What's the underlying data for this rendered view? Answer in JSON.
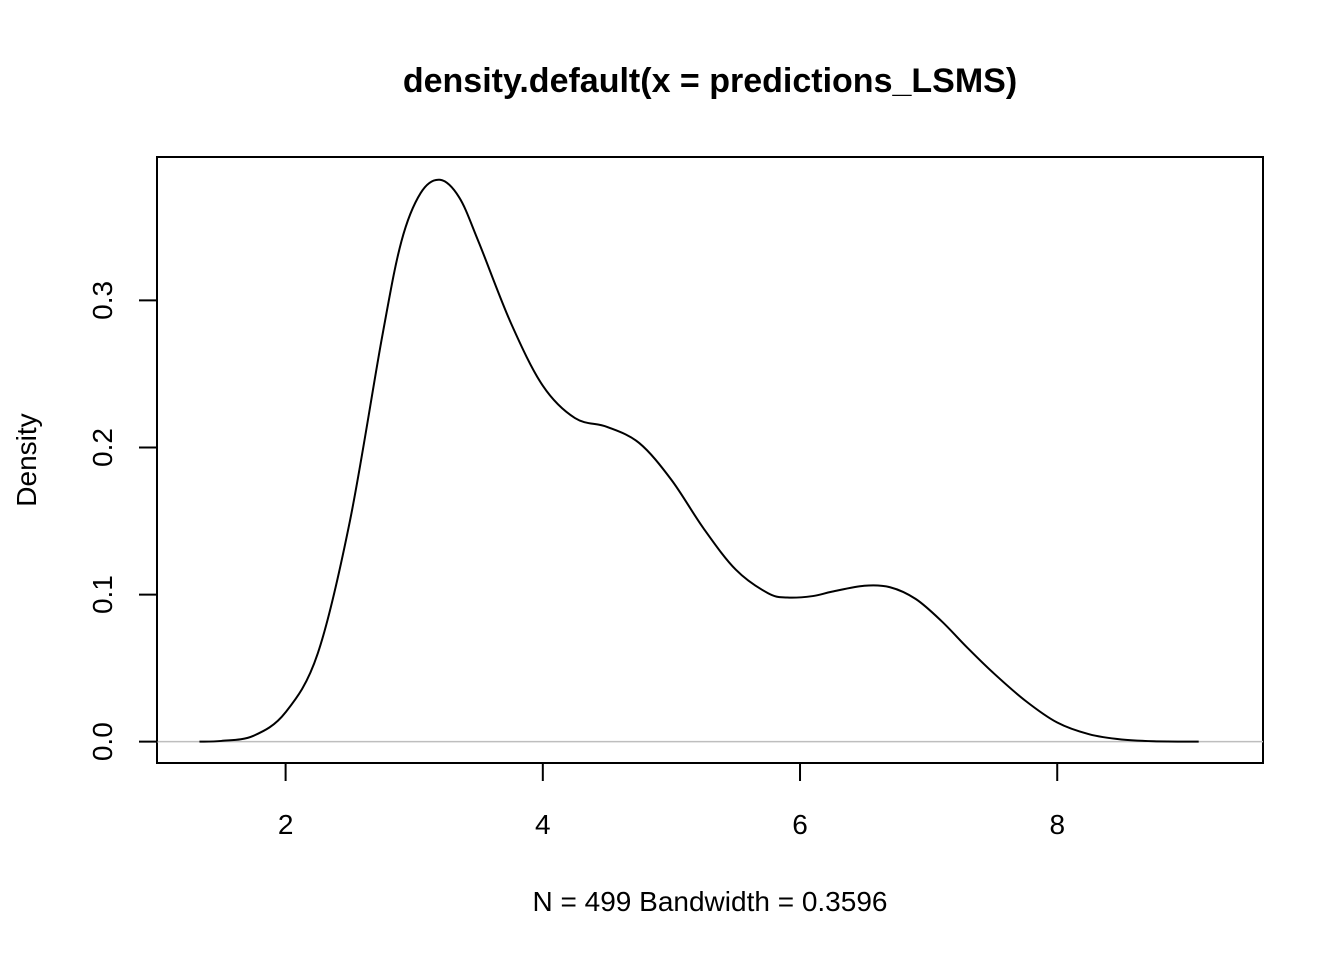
{
  "chart_data": {
    "type": "line",
    "title": "density.default(x = predictions_LSMS)",
    "xlabel": "N = 499   Bandwidth = 0.3596",
    "ylabel": "Density",
    "xlim": [
      1.0,
      9.6
    ],
    "ylim": [
      -0.0145,
      0.3975
    ],
    "x_ticks": [
      2,
      4,
      6,
      8
    ],
    "x_tick_labels": [
      "2",
      "4",
      "6",
      "8"
    ],
    "y_ticks": [
      0.0,
      0.1,
      0.2,
      0.3
    ],
    "y_tick_labels": [
      "0.0",
      "0.1",
      "0.2",
      "0.3"
    ],
    "baseline": 0,
    "grid": false,
    "colors": {
      "line": "#000000",
      "baseline": "#bebebe",
      "frame": "#000000"
    },
    "series": [
      {
        "x": [
          1.33,
          1.5,
          1.75,
          2.0,
          2.25,
          2.5,
          2.75,
          2.9,
          3.05,
          3.2,
          3.35,
          3.5,
          3.75,
          4.0,
          4.25,
          4.5,
          4.75,
          5.0,
          5.25,
          5.5,
          5.75,
          5.9,
          6.1,
          6.25,
          6.5,
          6.7,
          6.9,
          7.1,
          7.3,
          7.5,
          7.75,
          8.0,
          8.25,
          8.5,
          8.75,
          9.1
        ],
        "y": [
          0.0,
          0.0005,
          0.004,
          0.02,
          0.06,
          0.15,
          0.275,
          0.34,
          0.373,
          0.382,
          0.37,
          0.34,
          0.285,
          0.242,
          0.22,
          0.214,
          0.203,
          0.178,
          0.145,
          0.117,
          0.101,
          0.098,
          0.099,
          0.102,
          0.106,
          0.105,
          0.097,
          0.082,
          0.064,
          0.047,
          0.028,
          0.013,
          0.005,
          0.0015,
          0.0003,
          0.0
        ]
      }
    ]
  }
}
